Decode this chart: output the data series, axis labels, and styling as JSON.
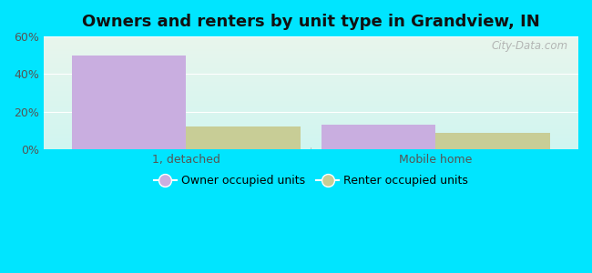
{
  "title": "Owners and renters by unit type in Grandview, IN",
  "categories": [
    "1, detached",
    "Mobile home"
  ],
  "owner_values": [
    50,
    13
  ],
  "renter_values": [
    12,
    9
  ],
  "owner_color": "#c9aee0",
  "renter_color": "#c8cd96",
  "ylim": [
    0,
    60
  ],
  "yticks": [
    0,
    20,
    40,
    60
  ],
  "ytick_labels": [
    "0%",
    "20%",
    "40%",
    "60%"
  ],
  "legend_owner": "Owner occupied units",
  "legend_renter": "Renter occupied units",
  "bg_outer": "#00e5ff",
  "bg_top_left": "#e8f5ec",
  "bg_bottom_right": "#d0f5f0",
  "watermark": "City-Data.com",
  "bar_width": 0.32,
  "title_fontsize": 13,
  "tick_fontsize": 9,
  "legend_fontsize": 9
}
